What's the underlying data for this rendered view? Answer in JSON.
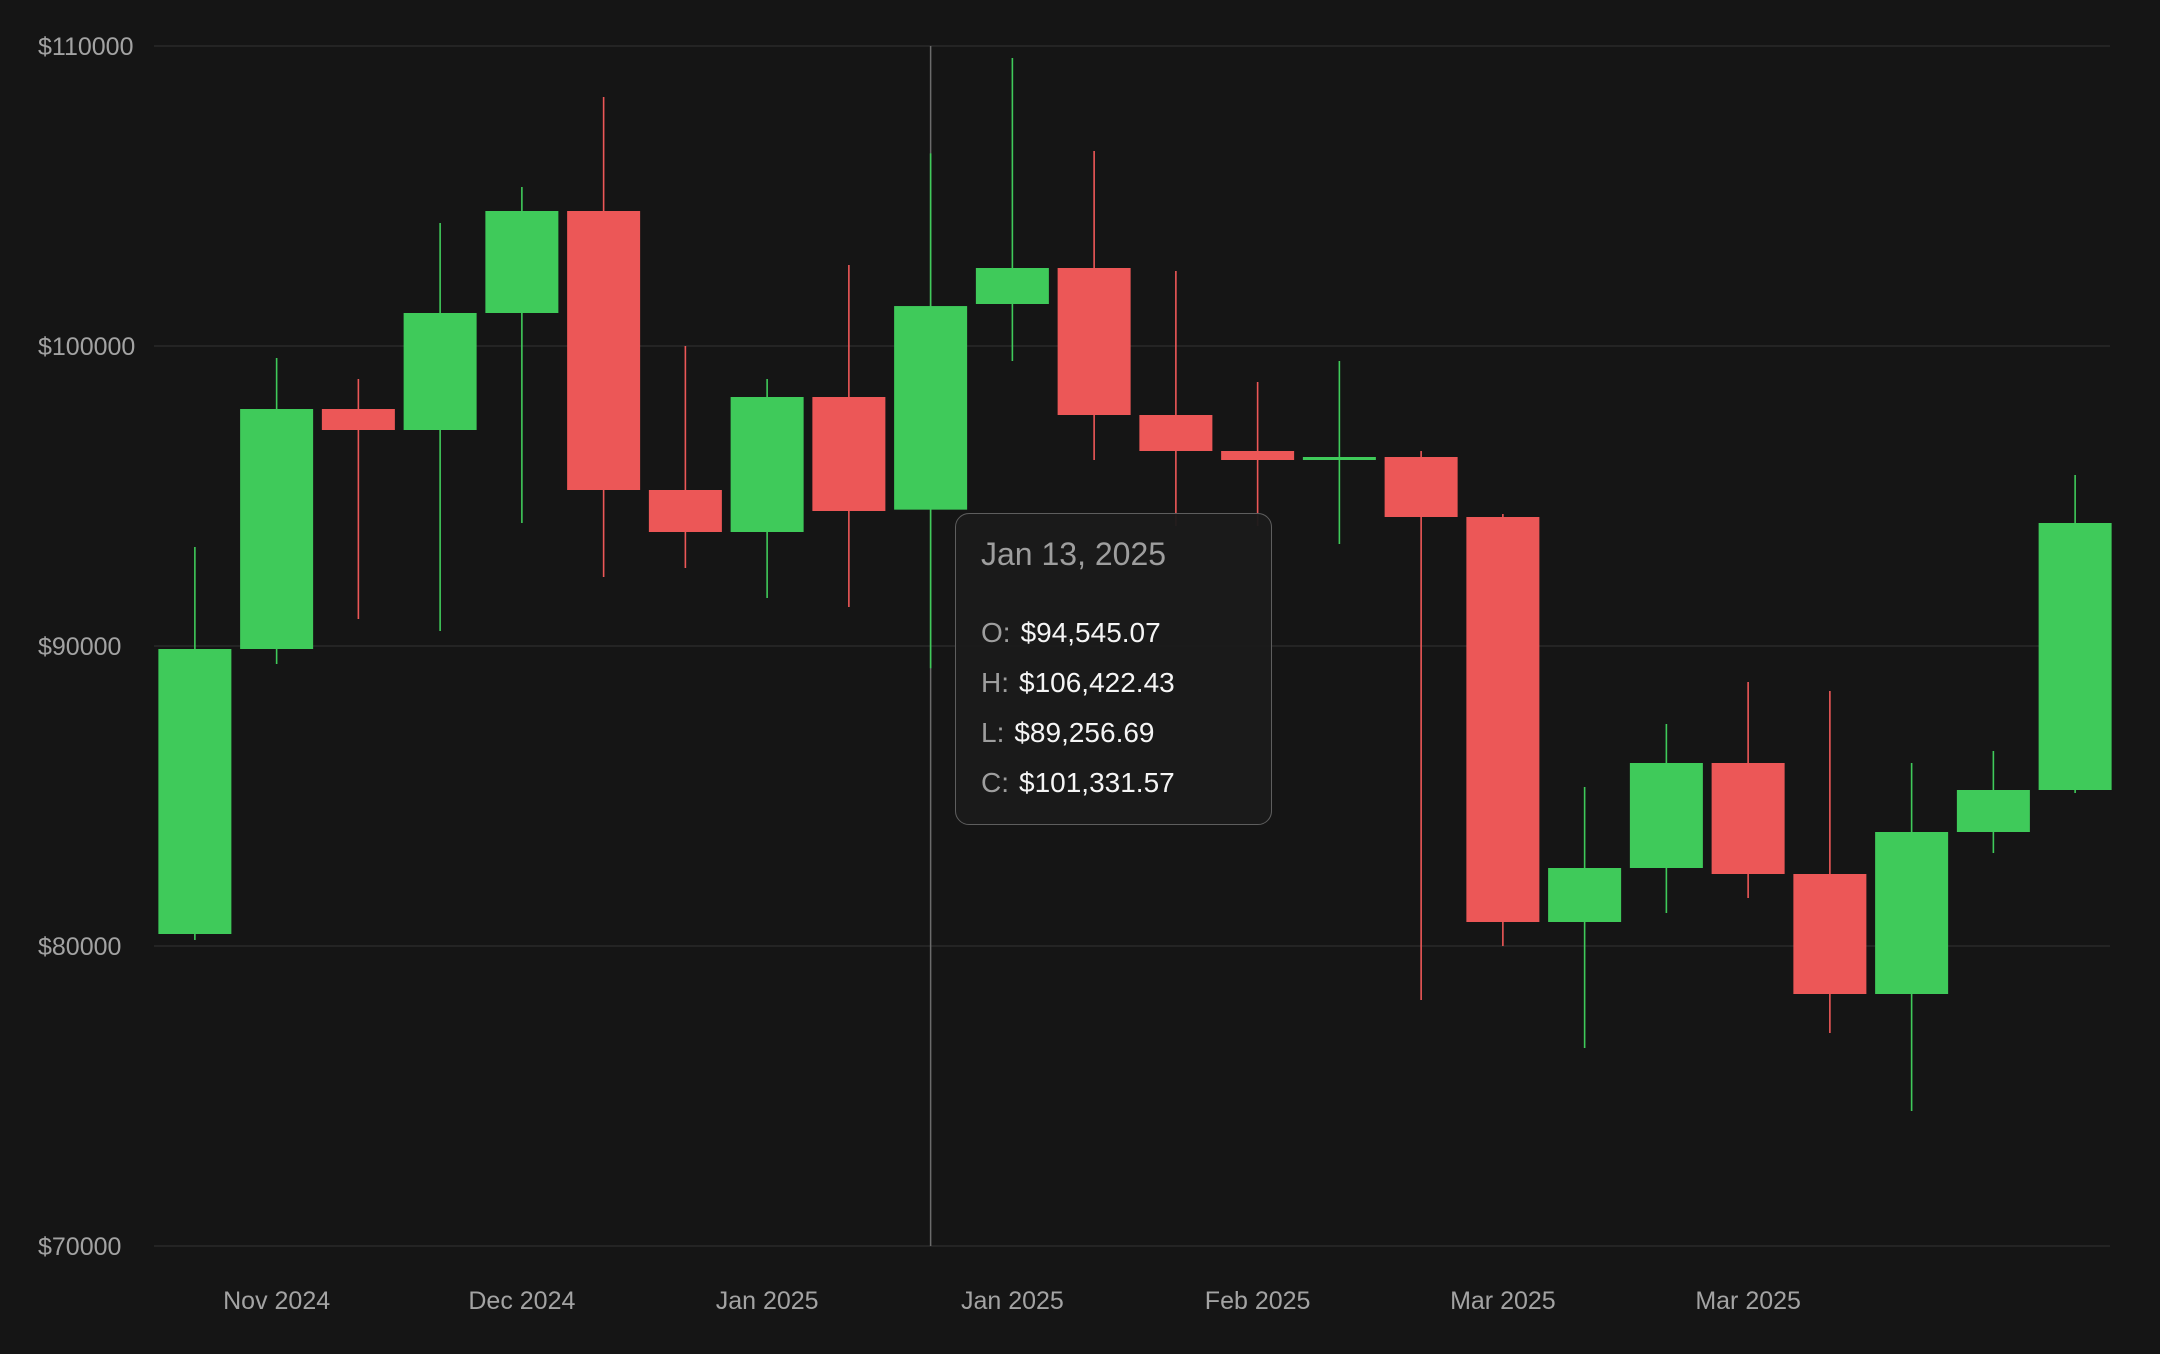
{
  "chart_data": {
    "type": "candlestick",
    "ylim": [
      70000,
      110000
    ],
    "y_ticks": [
      "$110000",
      "$100000",
      "$90000",
      "$80000",
      "$70000"
    ],
    "y_tick_values": [
      110000,
      100000,
      90000,
      80000,
      70000
    ],
    "x_ticks": [
      "Nov 2024",
      "Dec 2024",
      "Jan 2025",
      "Jan 2025",
      "Feb 2025",
      "Mar 2025",
      "Mar 2025"
    ],
    "x_tick_after_candle": [
      1.5,
      4.5,
      7.5,
      10.5,
      13.5,
      16.5,
      19.5
    ],
    "grid": true,
    "colors": {
      "up": "#3fca5a",
      "down": "#ec5757",
      "grid": "#2a2a2a",
      "crosshair": "#6b6b6b",
      "background": "#151515"
    },
    "candles": [
      {
        "o": 80400,
        "h": 93300,
        "l": 80200,
        "c": 89900
      },
      {
        "o": 89900,
        "h": 99600,
        "l": 89400,
        "c": 97900
      },
      {
        "o": 97900,
        "h": 98900,
        "l": 90900,
        "c": 97200
      },
      {
        "o": 97200,
        "h": 104100,
        "l": 90500,
        "c": 101100
      },
      {
        "o": 101100,
        "h": 105300,
        "l": 94100,
        "c": 104500
      },
      {
        "o": 104500,
        "h": 108300,
        "l": 92300,
        "c": 95200
      },
      {
        "o": 95200,
        "h": 100000,
        "l": 92600,
        "c": 93800
      },
      {
        "o": 93800,
        "h": 98900,
        "l": 91600,
        "c": 98300
      },
      {
        "o": 98300,
        "h": 102700,
        "l": 91300,
        "c": 94500
      },
      {
        "o": 94545.07,
        "h": 106422.43,
        "l": 89256.69,
        "c": 101331.57
      },
      {
        "o": 101400,
        "h": 109600,
        "l": 99500,
        "c": 102600
      },
      {
        "o": 102600,
        "h": 106500,
        "l": 96200,
        "c": 97700
      },
      {
        "o": 97700,
        "h": 102500,
        "l": 94000,
        "c": 96500
      },
      {
        "o": 96500,
        "h": 98800,
        "l": 94000,
        "c": 96200
      },
      {
        "o": 96200,
        "h": 99500,
        "l": 93400,
        "c": 96300
      },
      {
        "o": 96300,
        "h": 96500,
        "l": 78200,
        "c": 94300
      },
      {
        "o": 94300,
        "h": 94400,
        "l": 80000,
        "c": 80800
      },
      {
        "o": 80800,
        "h": 85300,
        "l": 76600,
        "c": 82600
      },
      {
        "o": 82600,
        "h": 87400,
        "l": 81100,
        "c": 86100
      },
      {
        "o": 86100,
        "h": 88800,
        "l": 81600,
        "c": 82400
      },
      {
        "o": 82400,
        "h": 88500,
        "l": 77100,
        "c": 78400
      },
      {
        "o": 78400,
        "h": 86100,
        "l": 74500,
        "c": 83800
      },
      {
        "o": 83800,
        "h": 86500,
        "l": 83100,
        "c": 85200
      },
      {
        "o": 85200,
        "h": 95700,
        "l": 85100,
        "c": 94100
      }
    ],
    "hovered_index": 9
  },
  "tooltip": {
    "date": "Jan 13, 2025",
    "open_label": "O:",
    "open_value": "$94,545.07",
    "high_label": "H:",
    "high_value": "$106,422.43",
    "low_label": "L:",
    "low_value": "$89,256.69",
    "close_label": "C:",
    "close_value": "$101,331.57"
  }
}
